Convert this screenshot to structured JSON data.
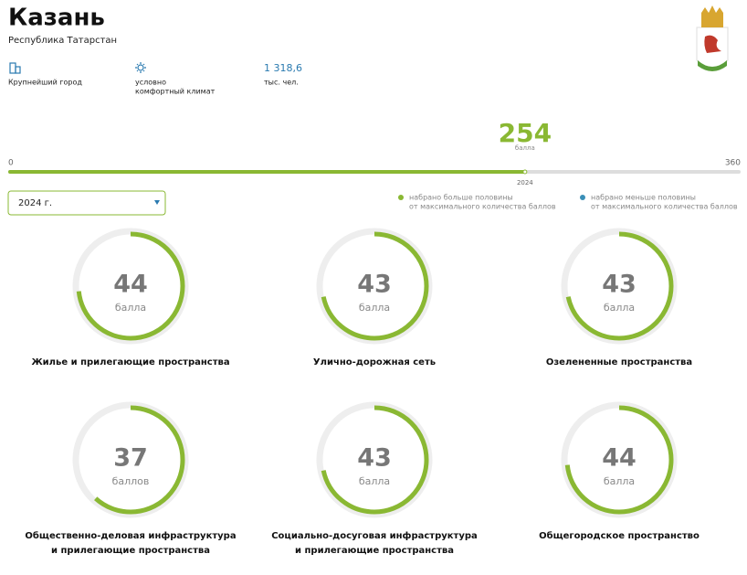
{
  "header": {
    "title": "Казань",
    "subtitle": "Республика Татарстан"
  },
  "facts": [
    {
      "lines": [
        "Крупнейший город"
      ]
    },
    {
      "lines": [
        "условно",
        "комфортный климат"
      ]
    },
    {
      "lines": [
        "1 318,6",
        "тыс. чел."
      ]
    }
  ],
  "total": {
    "score": 254,
    "unit": "балла",
    "min": 0,
    "max": 360,
    "year": "2024"
  },
  "selector": {
    "label": "2024 г."
  },
  "colors": {
    "above": "#8ab833",
    "below": "#3a8fb7"
  },
  "legend": [
    {
      "lines": [
        "набрано больше половины",
        "от максимального количества баллов"
      ]
    },
    {
      "lines": [
        "набрано меньше половины",
        "от максимального количества баллов"
      ]
    }
  ],
  "cards": [
    {
      "score": 44,
      "unit": "балла",
      "label": [
        "Жилье и прилегающие пространства"
      ]
    },
    {
      "score": 43,
      "unit": "балла",
      "label": [
        "Улично-дорожная сеть"
      ]
    },
    {
      "score": 43,
      "unit": "балла",
      "label": [
        "Озелененные пространства"
      ]
    },
    {
      "score": 37,
      "unit": "баллов",
      "label": [
        "Общественно-деловая инфраструктура",
        "и прилегающие пространства"
      ]
    },
    {
      "score": 43,
      "unit": "балла",
      "label": [
        "Социально-досуговая инфраструктура",
        "и прилегающие пространства"
      ]
    },
    {
      "score": 44,
      "unit": "балла",
      "label": [
        "Общегородское пространство"
      ]
    }
  ]
}
